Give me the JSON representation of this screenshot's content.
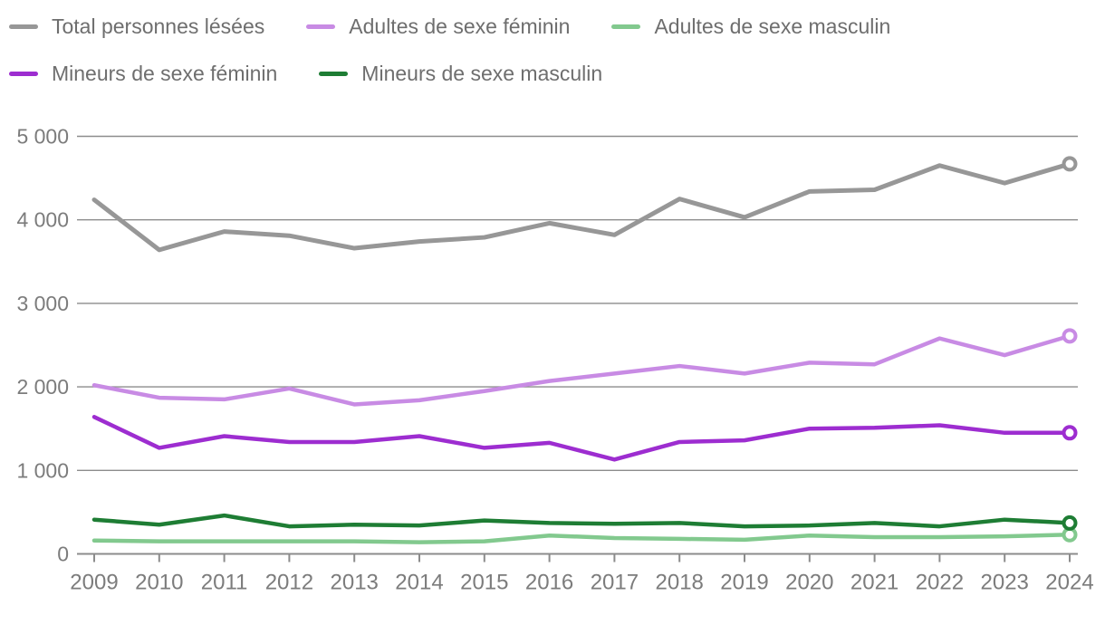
{
  "legend": {
    "items": [
      {
        "id": "total",
        "label": "Total personnes lésées",
        "color": "#979797"
      },
      {
        "id": "adultes-feminin",
        "label": "Adultes de sexe féminin",
        "color": "#c88be4"
      },
      {
        "id": "adultes-masculin",
        "label": "Adultes de sexe masculin",
        "color": "#82c98e"
      },
      {
        "id": "mineurs-feminin",
        "label": "Mineurs de sexe féminin",
        "color": "#9d2dd0"
      },
      {
        "id": "mineurs-masculin",
        "label": "Mineurs de sexe masculin",
        "color": "#1e7d34"
      }
    ]
  },
  "chart_data": {
    "type": "line",
    "x": [
      2009,
      2010,
      2011,
      2012,
      2013,
      2014,
      2015,
      2016,
      2017,
      2018,
      2019,
      2020,
      2021,
      2022,
      2023,
      2024
    ],
    "series": [
      {
        "id": "total",
        "name": "Total personnes lésées",
        "color": "#979797",
        "width": 5,
        "values": [
          4240,
          3640,
          3860,
          3810,
          3660,
          3740,
          3790,
          3960,
          3820,
          4250,
          4030,
          4340,
          4360,
          4650,
          4440,
          4670
        ]
      },
      {
        "id": "adultes-feminin",
        "name": "Adultes de sexe féminin",
        "color": "#c88be4",
        "width": 4.5,
        "values": [
          2020,
          1870,
          1850,
          1980,
          1790,
          1840,
          1950,
          2070,
          2160,
          2250,
          2160,
          2290,
          2270,
          2580,
          2380,
          2610
        ]
      },
      {
        "id": "adultes-masculin",
        "name": "Adultes de sexe masculin",
        "color": "#82c98e",
        "width": 4.5,
        "values": [
          160,
          150,
          150,
          150,
          150,
          140,
          150,
          220,
          190,
          180,
          170,
          220,
          200,
          200,
          210,
          230
        ]
      },
      {
        "id": "mineurs-feminin",
        "name": "Mineurs de sexe féminin",
        "color": "#9d2dd0",
        "width": 4.5,
        "values": [
          1640,
          1270,
          1410,
          1340,
          1340,
          1410,
          1270,
          1330,
          1130,
          1340,
          1360,
          1500,
          1510,
          1540,
          1450,
          1450
        ]
      },
      {
        "id": "mineurs-masculin",
        "name": "Mineurs de sexe masculin",
        "color": "#1e7d34",
        "width": 4.5,
        "values": [
          410,
          350,
          460,
          330,
          350,
          340,
          400,
          370,
          360,
          370,
          330,
          340,
          370,
          330,
          410,
          370
        ]
      }
    ],
    "title": "",
    "xlabel": "",
    "ylabel": "",
    "ylim": [
      0,
      5000
    ],
    "y_ticks": [
      0,
      1000,
      2000,
      3000,
      4000,
      5000
    ],
    "y_tick_labels": [
      "0",
      "1 000",
      "2 000",
      "3 000",
      "4 000",
      "5 000"
    ],
    "grid": "horizontal",
    "legend_position": "top",
    "end_markers": "open-circle-on-last-point"
  }
}
